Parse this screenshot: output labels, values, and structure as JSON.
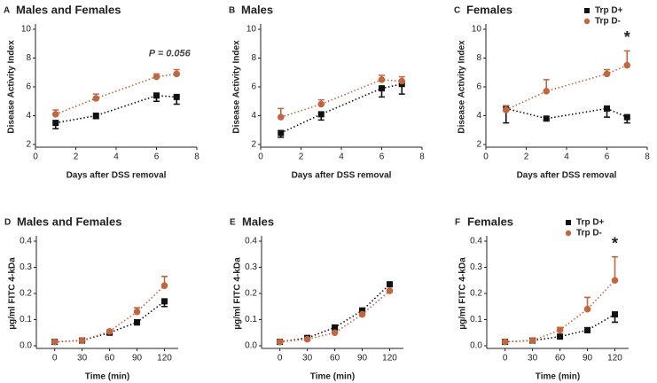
{
  "chart_data": [
    {
      "type": "line",
      "panel": "A",
      "title": "Males and Females",
      "xlabel": "Days after DSS removal",
      "ylabel": "Disease Activity Index",
      "x": [
        1,
        3,
        6,
        7
      ],
      "xlim": [
        0,
        8
      ],
      "xticks": [
        0,
        2,
        4,
        6,
        8
      ],
      "ylim": [
        2,
        10
      ],
      "yticks": [
        2,
        4,
        6,
        8,
        10
      ],
      "series": [
        {
          "color": "#111111",
          "marker": "square",
          "error_side": "lower",
          "values": [
            3.5,
            4.0,
            5.4,
            5.3
          ],
          "errors": [
            0.4,
            0.2,
            0.4,
            0.5
          ]
        },
        {
          "color": "#c0673f",
          "marker": "circle",
          "error_side": "upper",
          "values": [
            4.1,
            5.2,
            6.7,
            6.9
          ],
          "errors": [
            0.3,
            0.3,
            0.2,
            0.3
          ]
        }
      ],
      "annotation": "P = 0.056"
    },
    {
      "type": "line",
      "panel": "B",
      "title": "Males",
      "xlabel": "Days after DSS removal",
      "ylabel": "Disease Activity Index",
      "x": [
        1,
        3,
        6,
        7
      ],
      "xlim": [
        0,
        8
      ],
      "xticks": [
        0,
        2,
        4,
        6,
        8
      ],
      "ylim": [
        2,
        10
      ],
      "yticks": [
        2,
        4,
        6,
        8,
        10
      ],
      "series": [
        {
          "color": "#111111",
          "marker": "square",
          "error_side": "lower",
          "values": [
            2.8,
            4.1,
            5.9,
            6.2
          ],
          "errors": [
            0.3,
            0.4,
            0.6,
            0.7
          ]
        },
        {
          "color": "#c0673f",
          "marker": "circle",
          "error_side": "upper",
          "values": [
            3.9,
            4.8,
            6.5,
            6.4
          ],
          "errors": [
            0.6,
            0.3,
            0.3,
            0.3
          ]
        }
      ]
    },
    {
      "type": "line",
      "panel": "C",
      "title": "Females",
      "xlabel": "Days after DSS removal",
      "ylabel": "Disease Activity Index",
      "x": [
        1,
        3,
        6,
        7
      ],
      "xlim": [
        0,
        8
      ],
      "xticks": [
        0,
        2,
        4,
        6,
        8
      ],
      "ylim": [
        2,
        10
      ],
      "yticks": [
        2,
        4,
        6,
        8,
        10
      ],
      "series": [
        {
          "name": "Trp D+",
          "color": "#111111",
          "marker": "square",
          "error_side": "lower",
          "values": [
            4.5,
            3.8,
            4.5,
            3.9
          ],
          "errors": [
            1.0,
            0.1,
            0.6,
            0.4
          ]
        },
        {
          "name": "Trp D-",
          "color": "#c0673f",
          "marker": "circle",
          "error_side": "upper",
          "values": [
            4.4,
            5.7,
            6.9,
            7.5
          ],
          "errors": [
            0.3,
            0.8,
            0.3,
            1.0
          ]
        }
      ],
      "annotation": "*",
      "legend": "upper right"
    },
    {
      "type": "line",
      "panel": "D",
      "title": "Males and Females",
      "xlabel": "Time (min)",
      "ylabel": "µg/ml FITC 4-kDa",
      "x": [
        0,
        30,
        60,
        90,
        120
      ],
      "xlim": [
        -20,
        135
      ],
      "xticks": [
        0,
        30,
        60,
        90,
        120
      ],
      "ylim": [
        0,
        0.4
      ],
      "yticks": [
        {
          "value": 0,
          "label": "0.0"
        },
        0.1,
        0.2,
        0.3,
        0.4
      ],
      "series": [
        {
          "color": "#111111",
          "marker": "square",
          "error_side": "lower",
          "values": [
            0.015,
            0.02,
            0.05,
            0.09,
            0.17
          ],
          "errors": [
            0.002,
            0.002,
            0.005,
            0.01,
            0.02
          ]
        },
        {
          "color": "#c0673f",
          "marker": "circle",
          "error_side": "upper",
          "values": [
            0.015,
            0.02,
            0.055,
            0.13,
            0.23
          ],
          "errors": [
            0.002,
            0.002,
            0.005,
            0.015,
            0.035
          ]
        }
      ]
    },
    {
      "type": "line",
      "panel": "E",
      "title": "Males",
      "xlabel": "Time (min)",
      "ylabel": "µg/ml FITC 4-kDa",
      "x": [
        0,
        30,
        60,
        90,
        120
      ],
      "xlim": [
        -20,
        135
      ],
      "xticks": [
        0,
        30,
        60,
        90,
        120
      ],
      "ylim": [
        0,
        0.4
      ],
      "yticks": [
        {
          "value": 0,
          "label": "0.0"
        },
        0.1,
        0.2,
        0.3,
        0.4
      ],
      "series": [
        {
          "color": "#111111",
          "marker": "square",
          "error_side": "lower",
          "values": [
            0.015,
            0.03,
            0.07,
            0.135,
            0.235
          ],
          "errors": [
            0.002,
            0.003,
            0.005,
            0.005,
            0.005
          ]
        },
        {
          "color": "#c0673f",
          "marker": "circle",
          "error_side": "upper",
          "values": [
            0.015,
            0.025,
            0.05,
            0.12,
            0.21
          ],
          "errors": [
            0.002,
            0.002,
            0.004,
            0.005,
            0.005
          ]
        }
      ]
    },
    {
      "type": "line",
      "panel": "F",
      "title": "Females",
      "xlabel": "Time (min)",
      "ylabel": "µg/ml FITC 4-kDa",
      "x": [
        0,
        30,
        60,
        90,
        120
      ],
      "xlim": [
        -20,
        135
      ],
      "xticks": [
        0,
        30,
        60,
        90,
        120
      ],
      "ylim": [
        0,
        0.4
      ],
      "yticks": [
        {
          "value": 0,
          "label": "0.0"
        },
        0.1,
        0.2,
        0.3,
        0.4
      ],
      "series": [
        {
          "name": "Trp D+",
          "color": "#111111",
          "marker": "square",
          "error_side": "lower",
          "values": [
            0.015,
            0.02,
            0.035,
            0.06,
            0.12
          ],
          "errors": [
            0.002,
            0.002,
            0.004,
            0.01,
            0.03
          ]
        },
        {
          "name": "Trp D-",
          "color": "#c0673f",
          "marker": "circle",
          "error_side": "upper",
          "values": [
            0.015,
            0.02,
            0.06,
            0.14,
            0.25
          ],
          "errors": [
            0.002,
            0.002,
            0.01,
            0.045,
            0.09
          ]
        }
      ],
      "annotation": "*",
      "legend": "upper right"
    }
  ]
}
